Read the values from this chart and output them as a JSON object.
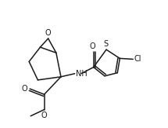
{
  "bg_color": "#ffffff",
  "line_color": "#1a1a1a",
  "line_width": 1.1,
  "font_size": 7.0,
  "figsize": [
    2.15,
    1.63
  ],
  "dpi": 100,
  "xlim": [
    0,
    10.5
  ],
  "ylim": [
    0,
    8.0
  ]
}
